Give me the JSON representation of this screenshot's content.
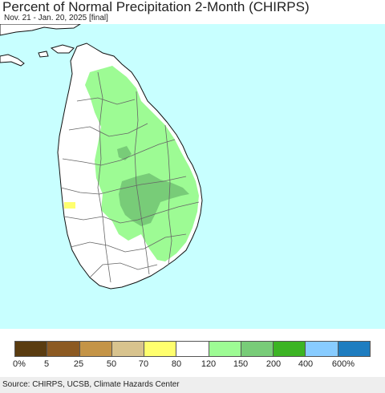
{
  "title": "Percent of Normal Precipitation 2-Month (CHIRPS)",
  "subtitle": "Nov. 21 - Jan. 20, 2025 [final]",
  "source": "Source: CHIRPS, UCSB, Climate Hazards Center",
  "colors": {
    "ocean": "#c8ffff",
    "land_normal": "#ffffff",
    "boundary": "#666666",
    "coast": "#111111"
  },
  "legend": {
    "swatches": [
      {
        "color": "#5a3c10"
      },
      {
        "color": "#8c5a22"
      },
      {
        "color": "#c49447"
      },
      {
        "color": "#d8c38e"
      },
      {
        "color": "#ffff6e"
      },
      {
        "color": "#ffffff"
      },
      {
        "color": "#9dfb94"
      },
      {
        "color": "#78cc78"
      },
      {
        "color": "#3cb424"
      },
      {
        "color": "#88ccff"
      },
      {
        "color": "#1e7dc0"
      }
    ],
    "ticks": [
      "0%",
      "5",
      "25",
      "50",
      "70",
      "80",
      "120",
      "150",
      "200",
      "400",
      "600%"
    ]
  },
  "map_regions": {
    "above_normal_150": "#9dfb94",
    "above_normal_200": "#78cc78",
    "below_normal_70": "#ffff6e"
  }
}
